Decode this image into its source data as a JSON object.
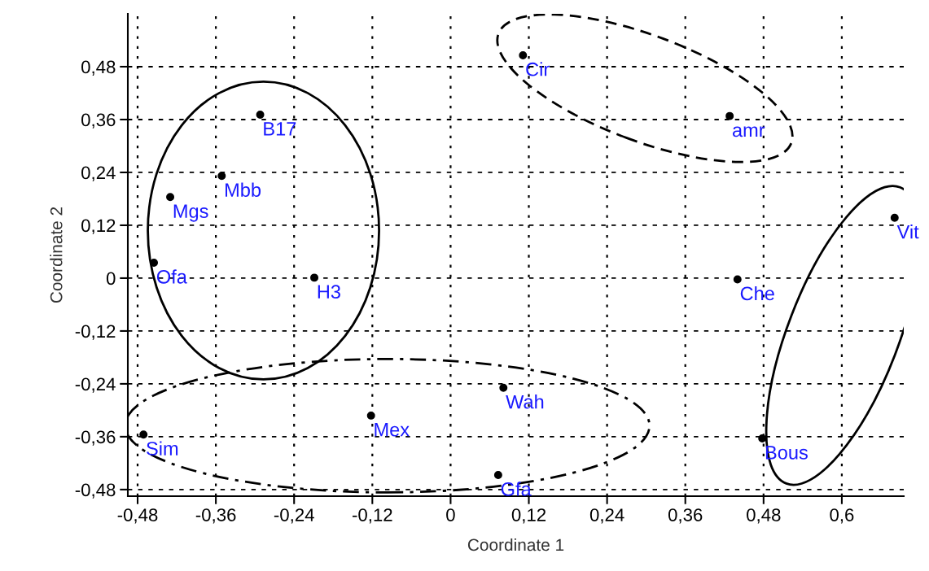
{
  "chart_data": {
    "type": "scatter",
    "xlabel": "Coordinate 1",
    "ylabel": "Coordinate 2",
    "xlim": [
      -0.495,
      0.695
    ],
    "ylim": [
      -0.495,
      0.6
    ],
    "xticks": [
      {
        "value": -0.48,
        "label": "-0,48"
      },
      {
        "value": -0.36,
        "label": "-0,36"
      },
      {
        "value": -0.24,
        "label": "-0,24"
      },
      {
        "value": -0.12,
        "label": "-0,12"
      },
      0,
      {
        "value": 0.12,
        "label": "0,12"
      },
      {
        "value": 0.24,
        "label": "0,24"
      },
      {
        "value": 0.36,
        "label": "0,36"
      },
      {
        "value": 0.48,
        "label": "0,48"
      },
      {
        "value": 0.6,
        "label": "0,6"
      }
    ],
    "yticks": [
      {
        "value": -0.48,
        "label": "-0,48"
      },
      {
        "value": -0.36,
        "label": "-0,36"
      },
      {
        "value": -0.24,
        "label": "-0,24"
      },
      {
        "value": -0.12,
        "label": "-0,12"
      },
      0,
      {
        "value": 0.12,
        "label": "0,12"
      },
      {
        "value": 0.24,
        "label": "0,24"
      },
      {
        "value": 0.36,
        "label": "0,36"
      },
      {
        "value": 0.48,
        "label": "0,48"
      }
    ],
    "grid": true,
    "marker": "circle",
    "series": [
      {
        "color": "#000000",
        "x": [
          -0.292,
          -0.351,
          -0.43,
          -0.455,
          -0.209,
          -0.122,
          -0.471,
          0.081,
          0.073,
          0.111,
          0.428,
          0.681,
          0.44,
          0.478
        ],
        "values": [
          0.371,
          0.232,
          0.184,
          0.035,
          0.001,
          -0.312,
          -0.355,
          -0.249,
          -0.447,
          0.506,
          0.368,
          0.137,
          -0.003,
          -0.364
        ]
      }
    ],
    "annotations": [
      {
        "text": "B17",
        "x": -0.292,
        "y": 0.371
      },
      {
        "text": "Mbb",
        "x": -0.351,
        "y": 0.232
      },
      {
        "text": "Mgs",
        "x": -0.43,
        "y": 0.184
      },
      {
        "text": "Ofa",
        "x": -0.455,
        "y": 0.035
      },
      {
        "text": "H3",
        "x": -0.209,
        "y": 0.001
      },
      {
        "text": "Mex",
        "x": -0.122,
        "y": -0.312
      },
      {
        "text": "Sim",
        "x": -0.471,
        "y": -0.355
      },
      {
        "text": "Wah",
        "x": 0.081,
        "y": -0.249
      },
      {
        "text": "Gfa",
        "x": 0.073,
        "y": -0.447
      },
      {
        "text": "Cir",
        "x": 0.111,
        "y": 0.506
      },
      {
        "text": "amr",
        "x": 0.428,
        "y": 0.368
      },
      {
        "text": "Vit",
        "x": 0.681,
        "y": 0.137
      },
      {
        "text": "Che",
        "x": 0.44,
        "y": -0.003
      },
      {
        "text": "Bous",
        "x": 0.478,
        "y": -0.364
      }
    ]
  }
}
